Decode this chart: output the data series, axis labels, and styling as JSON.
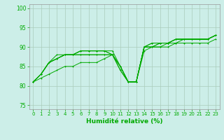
{
  "xlabel": "Humidité relative (%)",
  "bg_color": "#cceee8",
  "grid_color": "#aaccbb",
  "line_color": "#00aa00",
  "xlim": [
    -0.5,
    23.5
  ],
  "ylim": [
    74,
    101
  ],
  "yticks": [
    75,
    80,
    85,
    90,
    95,
    100
  ],
  "xticks": [
    0,
    1,
    2,
    3,
    4,
    5,
    6,
    7,
    8,
    9,
    10,
    11,
    12,
    13,
    14,
    15,
    16,
    17,
    18,
    19,
    20,
    21,
    22,
    23
  ],
  "series": [
    [
      81,
      83,
      86,
      87,
      88,
      88,
      88,
      88,
      88,
      88,
      88,
      84,
      81,
      81,
      90,
      90,
      90,
      91,
      91,
      92,
      92,
      92,
      92,
      93
    ],
    [
      81,
      83,
      86,
      87,
      88,
      88,
      88,
      88,
      88,
      88,
      88,
      85,
      81,
      81,
      90,
      90,
      91,
      91,
      92,
      92,
      92,
      92,
      92,
      93
    ],
    [
      81,
      83,
      86,
      87,
      88,
      88,
      89,
      89,
      89,
      89,
      88,
      85,
      81,
      81,
      90,
      90,
      91,
      91,
      92,
      92,
      92,
      92,
      92,
      93
    ],
    [
      81,
      83,
      86,
      87,
      88,
      88,
      89,
      89,
      89,
      89,
      89,
      85,
      81,
      81,
      90,
      91,
      91,
      91,
      92,
      92,
      92,
      92,
      92,
      93
    ],
    [
      81,
      83,
      86,
      88,
      88,
      88,
      89,
      89,
      89,
      89,
      88,
      85,
      81,
      81,
      90,
      91,
      91,
      91,
      92,
      92,
      92,
      92,
      92,
      93
    ]
  ],
  "series_low": [
    81,
    82,
    83,
    84,
    85,
    85,
    86,
    86,
    86,
    87,
    88,
    84,
    81,
    81,
    89,
    90,
    90,
    90,
    91,
    91,
    91,
    91,
    91,
    92
  ]
}
